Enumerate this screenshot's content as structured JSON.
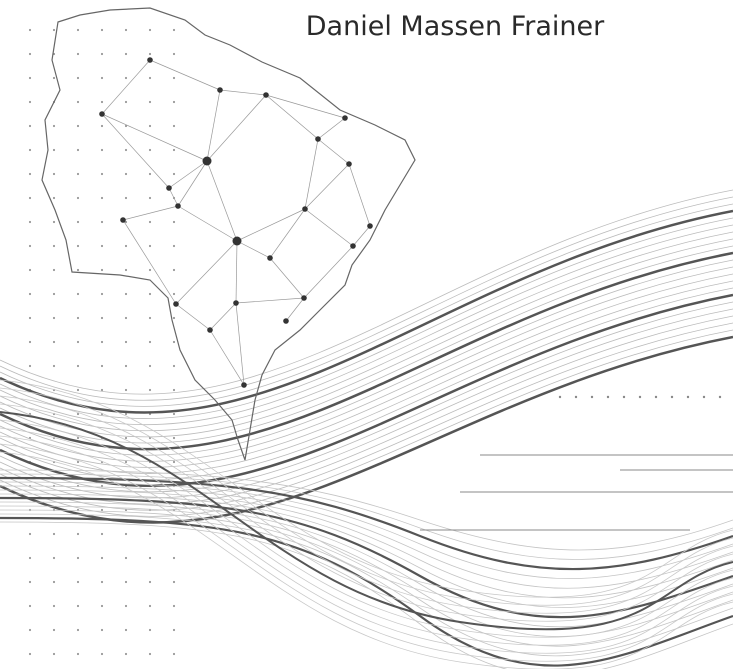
{
  "cover": {
    "author": "Daniel Massen Frainer"
  }
}
